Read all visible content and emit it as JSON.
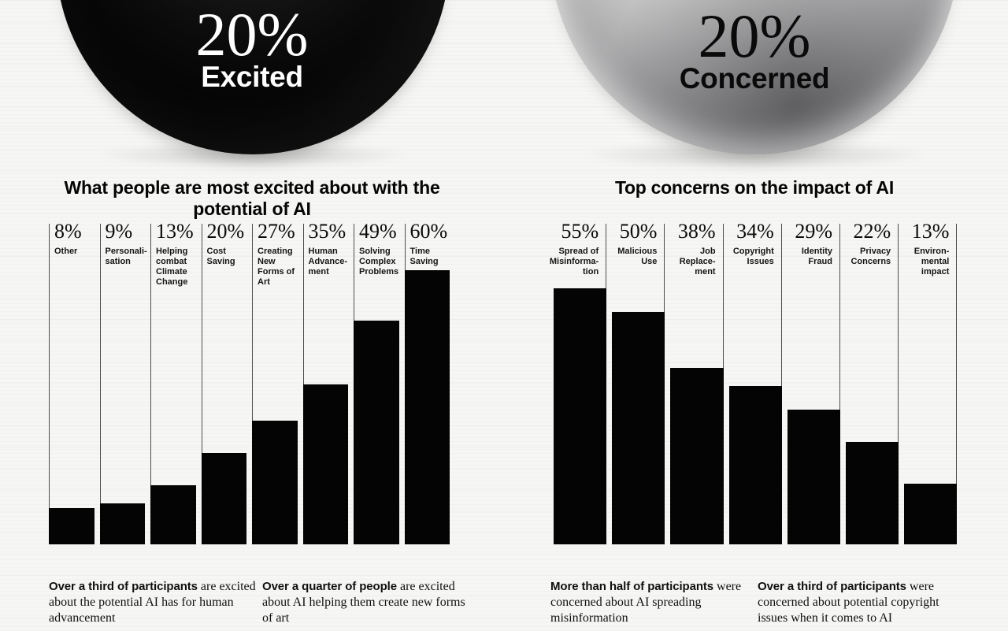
{
  "page": {
    "background": "#f6f6f4",
    "ink": "#0a0a0a",
    "bar_color": "#000000",
    "divider_color": "#4d4d4d"
  },
  "panels": [
    {
      "id": "excited",
      "bubble": {
        "value": "20%",
        "label": "Excited",
        "fill": "#000000",
        "text_color": "#ffffff"
      },
      "title": {
        "pre": "What people are ",
        "emphasis": "most excited",
        "post": " about with the potential of AI"
      },
      "chart": {
        "items": [
          {
            "pct": "8%",
            "value": 8,
            "label": "Other"
          },
          {
            "pct": "9%",
            "value": 9,
            "label": "Personali-\nsation"
          },
          {
            "pct": "13%",
            "value": 13,
            "label": "Helping\ncombat\nClimate\nChange"
          },
          {
            "pct": "20%",
            "value": 20,
            "label": "Cost\nSaving"
          },
          {
            "pct": "27%",
            "value": 27,
            "label": "Creating\nNew\nForms of\nArt"
          },
          {
            "pct": "35%",
            "value": 35,
            "label": "Human\nAdvance-\nment"
          },
          {
            "pct": "49%",
            "value": 49,
            "label": "Solving\nComplex\nProblems"
          },
          {
            "pct": "60%",
            "value": 60,
            "label": "Time\nSaving"
          }
        ]
      },
      "footnotes": [
        {
          "bold": "Over a third of participants",
          "rest": " are excited about the potential AI has for human advancement"
        },
        {
          "bold": "Over a quarter of people",
          "rest": " are excited about AI helping them create new forms of art"
        }
      ]
    },
    {
      "id": "concerned",
      "bubble": {
        "value": "20%",
        "label": "Concerned",
        "fill": "silver",
        "text_color": "#0a0a0a"
      },
      "title": {
        "pre": "",
        "emphasis": "Top concerns",
        "post": " on the impact of AI"
      },
      "chart": {
        "items": [
          {
            "pct": "55%",
            "value": 55,
            "label": "Spread of\nMisinforma-\ntion"
          },
          {
            "pct": "50%",
            "value": 50,
            "label": "Malicious\nUse"
          },
          {
            "pct": "38%",
            "value": 38,
            "label": "Job\nReplace-\nment"
          },
          {
            "pct": "34%",
            "value": 34,
            "label": "Copyright\nIssues"
          },
          {
            "pct": "29%",
            "value": 29,
            "label": "Identity\nFraud"
          },
          {
            "pct": "22%",
            "value": 22,
            "label": "Privacy\nConcerns"
          },
          {
            "pct": "13%",
            "value": 13,
            "label": "Environ-\nmental\nimpact"
          }
        ]
      },
      "footnotes": [
        {
          "bold": "More than half of participants",
          "rest": " were concerned about AI spreading misinformation"
        },
        {
          "bold": "Over a third of participants",
          "rest": " were concerned about potential copyright issues when it comes to AI"
        }
      ]
    }
  ],
  "chart_data": [
    {
      "type": "bar",
      "title": "What people are most excited about with the potential of AI",
      "categories": [
        "Other",
        "Personalisation",
        "Helping combat Climate Change",
        "Cost Saving",
        "Creating New Forms of Art",
        "Human Advancement",
        "Solving Complex Problems",
        "Time Saving"
      ],
      "values": [
        8,
        9,
        13,
        20,
        27,
        35,
        49,
        60
      ],
      "unit": "%",
      "value_labels": [
        "8%",
        "9%",
        "13%",
        "20%",
        "27%",
        "35%",
        "49%",
        "60%"
      ],
      "bar_color": "#000000",
      "ylim": [
        0,
        60
      ],
      "grid": false,
      "legend": "none",
      "orientation": "vertical",
      "value_label_position": "above-bar-top-of-column"
    },
    {
      "type": "bar",
      "title": "Top concerns on the impact of AI",
      "categories": [
        "Spread of Misinformation",
        "Malicious Use",
        "Job Replacement",
        "Copyright Issues",
        "Identity Fraud",
        "Privacy Concerns",
        "Environmental impact"
      ],
      "values": [
        55,
        50,
        38,
        34,
        29,
        22,
        13
      ],
      "unit": "%",
      "value_labels": [
        "55%",
        "50%",
        "38%",
        "34%",
        "29%",
        "22%",
        "13%"
      ],
      "bar_color": "#000000",
      "ylim": [
        0,
        60
      ],
      "grid": false,
      "legend": "none",
      "orientation": "vertical",
      "value_label_position": "above-bar-top-of-column"
    }
  ]
}
